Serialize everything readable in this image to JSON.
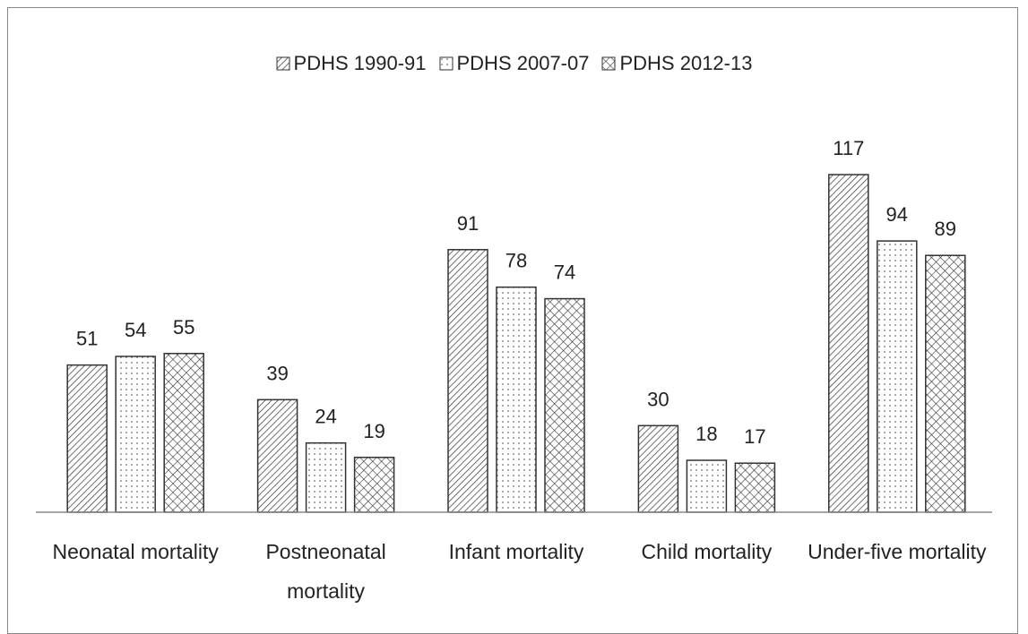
{
  "chart_data": {
    "type": "bar",
    "categories": [
      "Neonatal mortality",
      "Postneonatal mortality",
      "Infant mortality",
      "Child mortality",
      "Under-five mortality"
    ],
    "series": [
      {
        "name": "PDHS 1990-91",
        "color": "#333333",
        "pattern": "diagonal",
        "values": [
          51,
          39,
          91,
          30,
          117
        ]
      },
      {
        "name": "PDHS 2007-07",
        "color": "#333333",
        "pattern": "dots",
        "values": [
          54,
          24,
          78,
          18,
          94
        ]
      },
      {
        "name": "PDHS 2012-13",
        "color": "#333333",
        "pattern": "crosshatch",
        "values": [
          55,
          19,
          74,
          17,
          89
        ]
      }
    ],
    "legend": "top"
  }
}
